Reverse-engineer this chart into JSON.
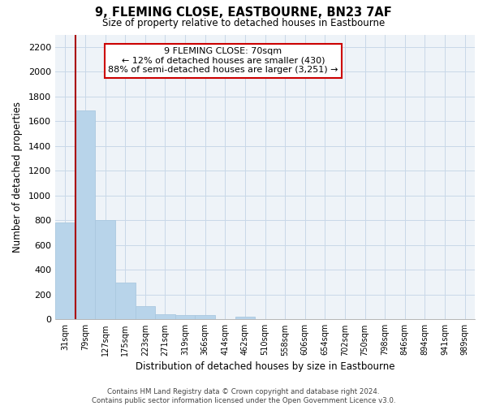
{
  "title": "9, FLEMING CLOSE, EASTBOURNE, BN23 7AF",
  "subtitle": "Size of property relative to detached houses in Eastbourne",
  "xlabel": "Distribution of detached houses by size in Eastbourne",
  "ylabel": "Number of detached properties",
  "footer_line1": "Contains HM Land Registry data © Crown copyright and database right 2024.",
  "footer_line2": "Contains public sector information licensed under the Open Government Licence v3.0.",
  "categories": [
    "31sqm",
    "79sqm",
    "127sqm",
    "175sqm",
    "223sqm",
    "271sqm",
    "319sqm",
    "366sqm",
    "414sqm",
    "462sqm",
    "510sqm",
    "558sqm",
    "606sqm",
    "654sqm",
    "702sqm",
    "750sqm",
    "798sqm",
    "846sqm",
    "894sqm",
    "941sqm",
    "989sqm"
  ],
  "values": [
    780,
    1690,
    800,
    300,
    110,
    40,
    35,
    35,
    0,
    25,
    0,
    0,
    0,
    0,
    0,
    0,
    0,
    0,
    0,
    0,
    0
  ],
  "bar_color": "#b8d4ea",
  "bar_edgecolor": "#aac8e0",
  "annotation_line1": "9 FLEMING CLOSE: 70sqm",
  "annotation_line2": "← 12% of detached houses are smaller (430)",
  "annotation_line3": "88% of semi-detached houses are larger (3,251) →",
  "annotation_box_edgecolor": "#cc0000",
  "annotation_box_facecolor": "#ffffff",
  "ylim": [
    0,
    2300
  ],
  "yticks": [
    0,
    200,
    400,
    600,
    800,
    1000,
    1200,
    1400,
    1600,
    1800,
    2000,
    2200
  ],
  "property_line_color": "#aa0000",
  "property_line_x": 1,
  "bg_color": "#eef3f8"
}
